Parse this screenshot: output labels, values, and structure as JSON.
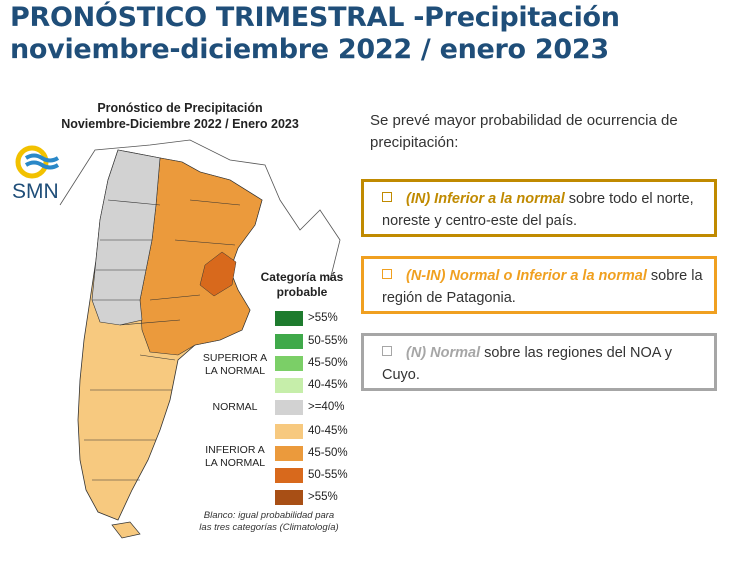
{
  "title": {
    "line1": "PRONÓSTICO TRIMESTRAL -Precipitación",
    "line2": "noviembre-diciembre 2022 / enero 2023"
  },
  "map": {
    "title_line1": "Pronóstico de Precipitación",
    "title_line2": "Noviembre-Diciembre 2022 / Enero 2023",
    "logo_text": "SMN",
    "legend": {
      "title_line1": "Categoría más",
      "title_line2": "probable",
      "groups": {
        "superior_line1": "SUPERIOR A",
        "superior_line2": "LA NORMAL",
        "normal": "NORMAL",
        "inferior_line1": "INFERIOR A",
        "inferior_line2": "LA NORMAL"
      },
      "entries": [
        {
          "label": ">55%",
          "color": "#1e7b2e"
        },
        {
          "label": "50-55%",
          "color": "#3fa94a"
        },
        {
          "label": "45-50%",
          "color": "#7bcf67"
        },
        {
          "label": "40-45%",
          "color": "#c6eeaa"
        },
        {
          "label": ">=40%",
          "color": "#d2d2d2"
        },
        {
          "label": "40-45%",
          "color": "#f7c97f"
        },
        {
          "label": "45-50%",
          "color": "#eb9a3c"
        },
        {
          "label": "50-55%",
          "color": "#d8691c"
        },
        {
          "label": ">55%",
          "color": "#a84f15"
        }
      ]
    },
    "footnote_line1": "Blanco: igual probabilidad para",
    "footnote_line2": "las tres categorías (Climatología)"
  },
  "text": {
    "intro": "Se prevé mayor probabilidad de ocurrencia de precipitación:",
    "items": [
      {
        "em": "(IN) Inferior a la normal",
        "rest": " sobre todo el norte, noreste y centro-este del país.",
        "color": "#c08a00"
      },
      {
        "em": "(N-IN) Normal o Inferior a la normal",
        "rest": " sobre la región de Patagonia.",
        "color": "#f0a020"
      },
      {
        "em": "(N) Normal",
        "rest": " sobre las regiones del NOA y Cuyo.",
        "color": "#a6a6a6"
      }
    ]
  }
}
